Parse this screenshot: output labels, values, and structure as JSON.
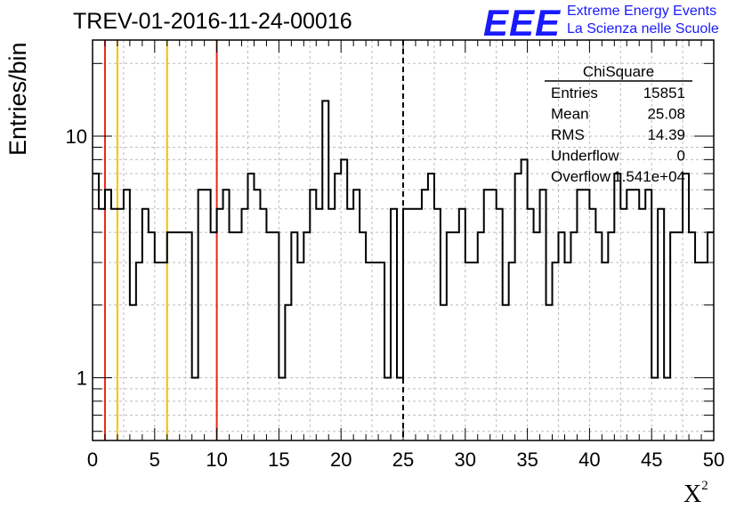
{
  "header": {
    "title": "TREV-01-2016-11-24-00016",
    "logo_text": "EEE",
    "logo_line1": "Extreme Energy Events",
    "logo_line2": "La Scienza nelle Scuole"
  },
  "stats_box": {
    "name": "ChiSquare",
    "rows": [
      {
        "label": "Entries",
        "value": "15851"
      },
      {
        "label": "Mean",
        "value": "25.08"
      },
      {
        "label": "RMS",
        "value": "14.39"
      },
      {
        "label": "Underflow",
        "value": "0"
      },
      {
        "label": "Overflow",
        "value": "1.541e+04"
      }
    ]
  },
  "colors": {
    "histogram": "#000000",
    "red_line": "#e8261d",
    "yellow_line": "#f5c200",
    "grid": "#bdbdbd",
    "logo": "#1a1aff"
  },
  "chart_data": {
    "type": "bar",
    "style": "step-histogram",
    "xlabel_base": "X",
    "xlabel_sup": "2",
    "ylabel": "Entries/bin",
    "xlim": [
      0,
      50
    ],
    "ylim": [
      0.55,
      25
    ],
    "y_scale": "log",
    "grid": true,
    "bin_width": 0.5,
    "x_tick_labels": [
      "0",
      "5",
      "10",
      "15",
      "20",
      "25",
      "30",
      "35",
      "40",
      "45",
      "50"
    ],
    "y_tick_labels": [
      {
        "value": 1,
        "label": "1"
      },
      {
        "value": 10,
        "label": "10"
      }
    ],
    "values": [
      7,
      5,
      6,
      5,
      5,
      6,
      2,
      3,
      5,
      4,
      3,
      3,
      4,
      4,
      4,
      4,
      1,
      6,
      6,
      4,
      5,
      6,
      4,
      4,
      5,
      7,
      6,
      5,
      4,
      4,
      1,
      2,
      4,
      3,
      4,
      6,
      5,
      14,
      5,
      7,
      8,
      5,
      6,
      4,
      3,
      3,
      3,
      1,
      5,
      1,
      5,
      5,
      5,
      6,
      7,
      5,
      2,
      4,
      4,
      5,
      3,
      3,
      4,
      6,
      6,
      5,
      2,
      3,
      7,
      8,
      5,
      4,
      6,
      2,
      3,
      4,
      3,
      4,
      6,
      6,
      5,
      4,
      3,
      4,
      7,
      5,
      6,
      6,
      5,
      6,
      1,
      5,
      1,
      4,
      4,
      7,
      4,
      3,
      3,
      4
    ],
    "vertical_lines": [
      {
        "x": 1,
        "color": "red",
        "style": "solid"
      },
      {
        "x": 2,
        "color": "yellow",
        "style": "solid"
      },
      {
        "x": 6,
        "color": "yellow",
        "style": "solid"
      },
      {
        "x": 10,
        "color": "red",
        "style": "solid"
      },
      {
        "x": 25,
        "color": "black",
        "style": "dashed"
      }
    ]
  }
}
